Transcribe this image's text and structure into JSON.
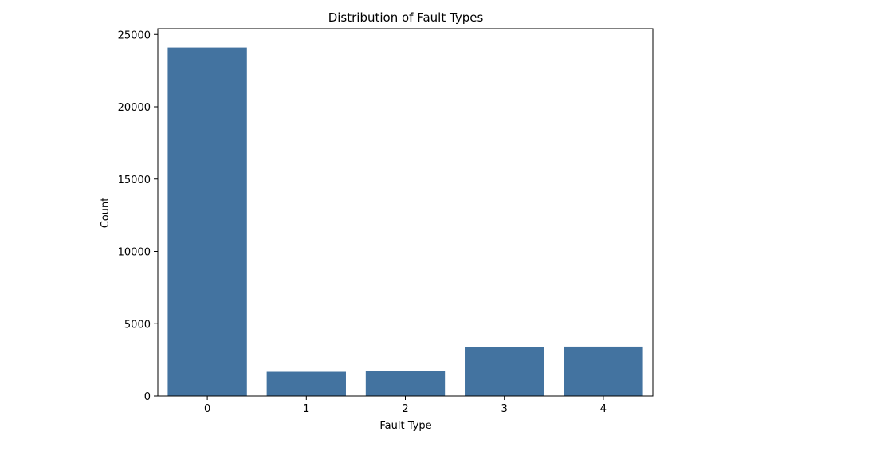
{
  "chart_data": {
    "type": "bar",
    "title": "Distribution of Fault Types",
    "xlabel": "Fault Type",
    "ylabel": "Count",
    "categories": [
      "0",
      "1",
      "2",
      "3",
      "4"
    ],
    "values": [
      24100,
      1680,
      1720,
      3370,
      3420
    ],
    "ylim": [
      0,
      25400
    ],
    "yticks": [
      0,
      5000,
      10000,
      15000,
      20000,
      25000
    ],
    "grid": false,
    "bar_color": "#4373a0"
  }
}
